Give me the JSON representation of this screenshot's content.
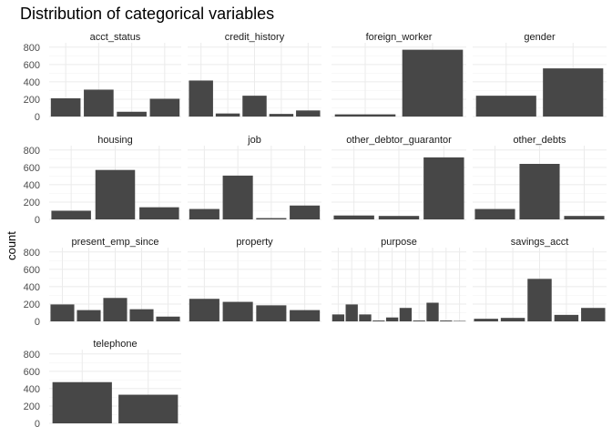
{
  "chart_data": {
    "type": "bar",
    "title": "Distribution of categorical variables",
    "ylabel": "count",
    "xlabel": "",
    "ylim": [
      0,
      850
    ],
    "yticks": [
      0,
      200,
      400,
      600,
      800
    ],
    "grid": true,
    "bar_color": "#474747",
    "panels": [
      {
        "name": "acct_status",
        "values": [
          210,
          310,
          55,
          205
        ]
      },
      {
        "name": "credit_history",
        "values": [
          415,
          35,
          240,
          30,
          70
        ]
      },
      {
        "name": "foreign_worker",
        "values": [
          25,
          770
        ]
      },
      {
        "name": "gender",
        "values": [
          240,
          555
        ]
      },
      {
        "name": "housing",
        "values": [
          100,
          570,
          140
        ]
      },
      {
        "name": "job",
        "values": [
          120,
          505,
          15,
          160
        ]
      },
      {
        "name": "other_debtor_guarantor",
        "values": [
          45,
          40,
          715
        ]
      },
      {
        "name": "other_debts",
        "values": [
          120,
          640,
          40
        ]
      },
      {
        "name": "present_emp_since",
        "values": [
          195,
          130,
          270,
          140,
          55
        ]
      },
      {
        "name": "property",
        "values": [
          260,
          225,
          185,
          130
        ]
      },
      {
        "name": "purpose",
        "values": [
          80,
          195,
          80,
          10,
          45,
          155,
          10,
          215,
          10,
          5
        ]
      },
      {
        "name": "savings_acct",
        "values": [
          30,
          40,
          490,
          75,
          155
        ]
      },
      {
        "name": "telephone",
        "values": [
          475,
          330
        ]
      }
    ]
  }
}
